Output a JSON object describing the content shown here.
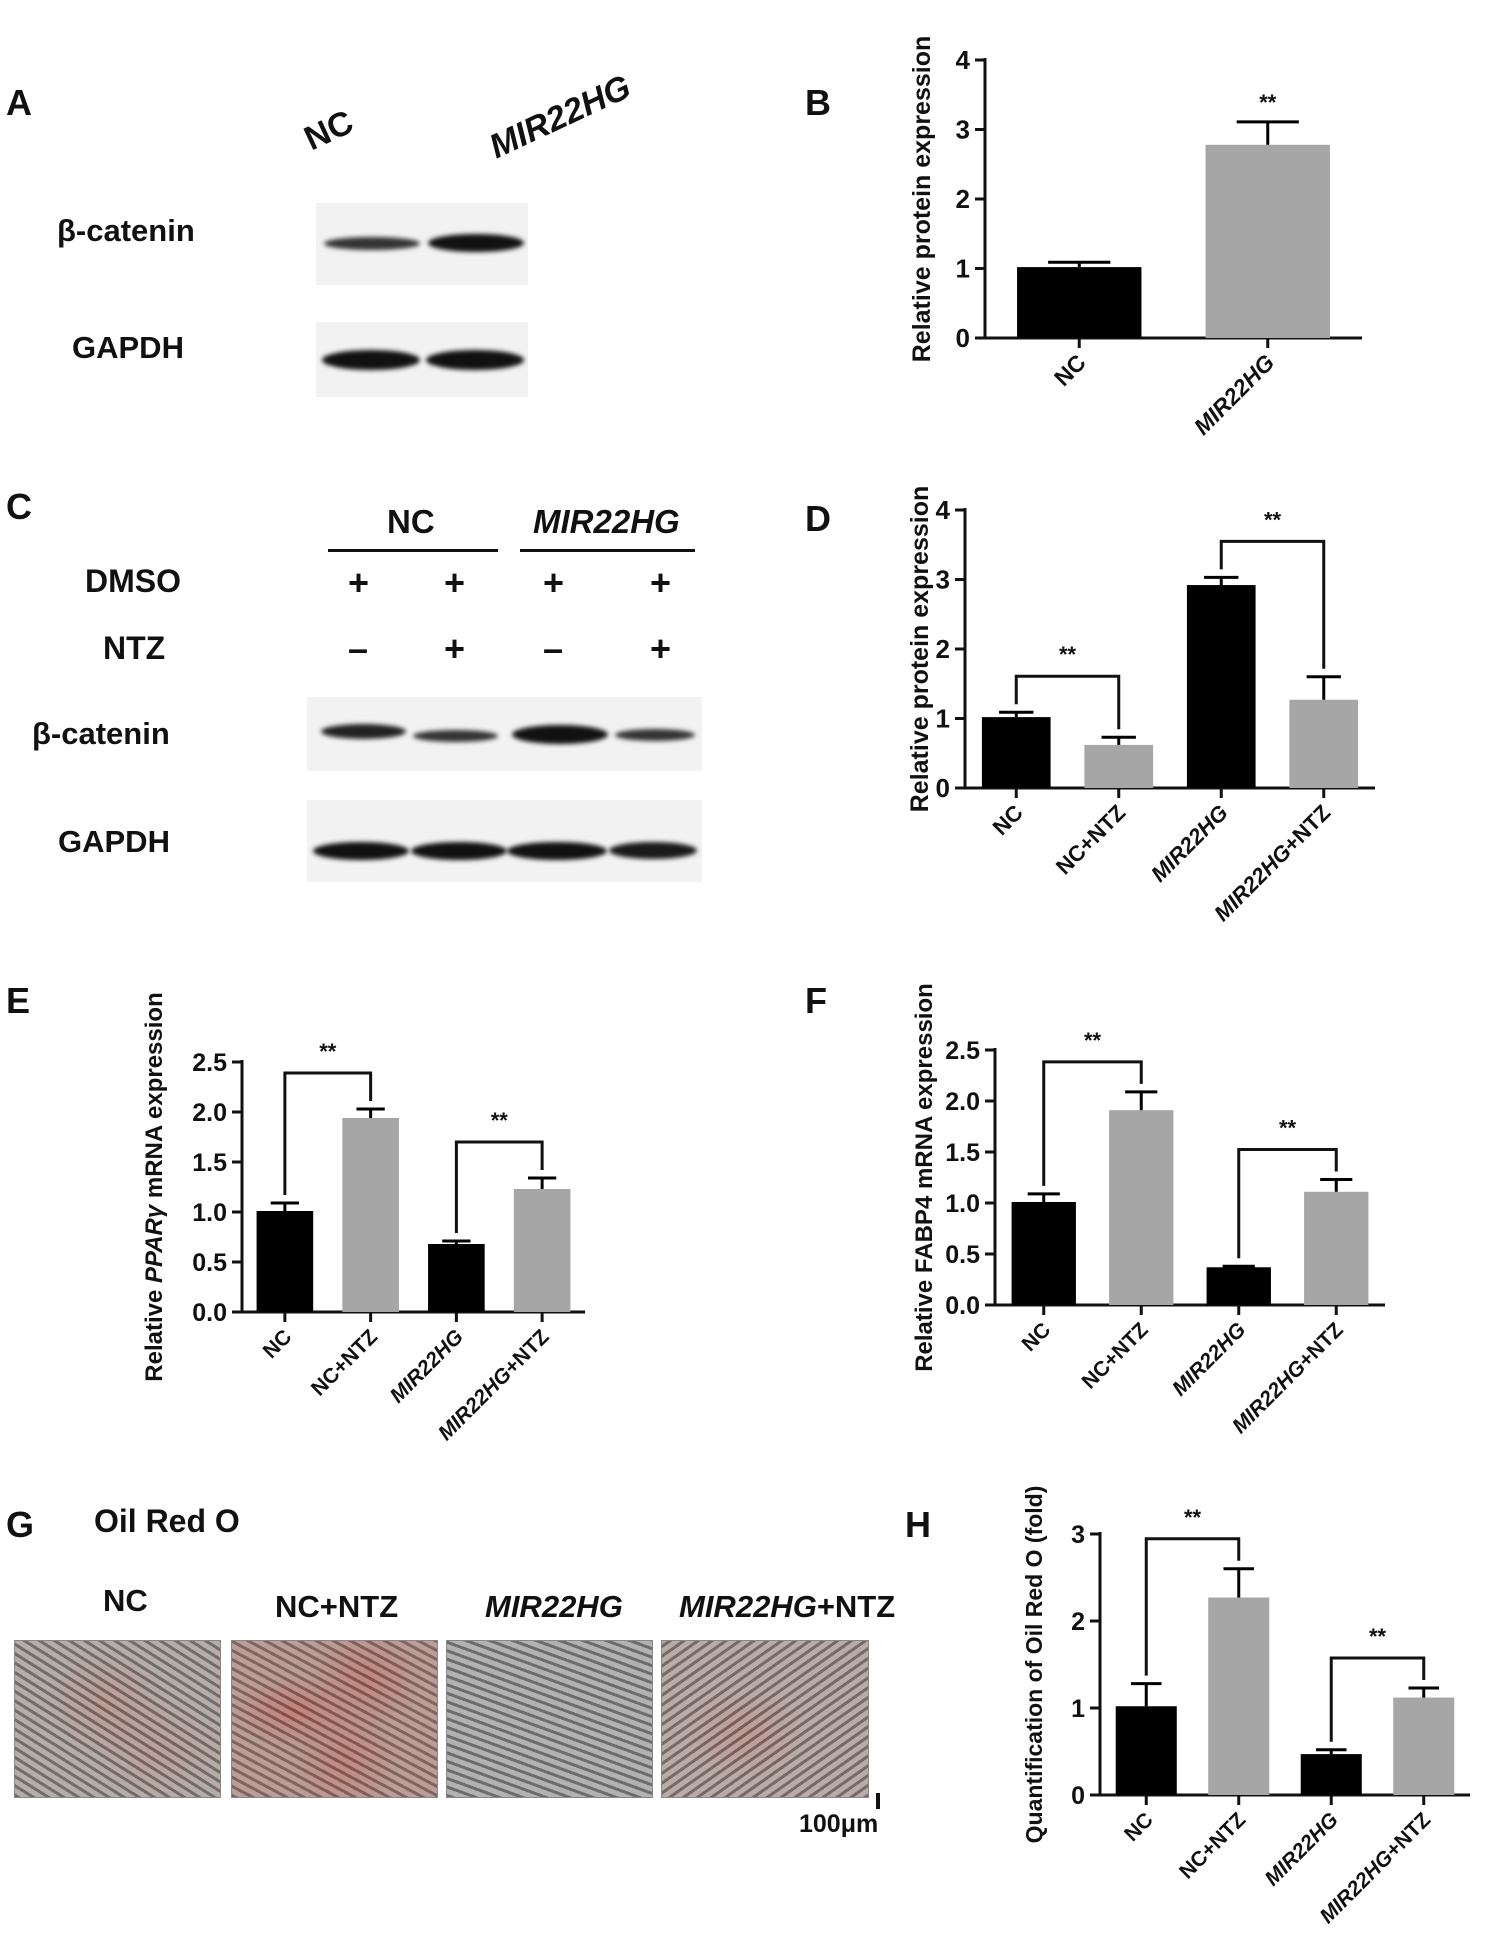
{
  "panels": {
    "A": "A",
    "B": "B",
    "C": "C",
    "D": "D",
    "E": "E",
    "F": "F",
    "G": "G",
    "H": "H"
  },
  "blotA": {
    "lane_labels": [
      "NC",
      "MIR22HG"
    ],
    "rows": [
      "β-catenin",
      "GAPDH"
    ],
    "band_intensity": {
      "beta_catenin": [
        0.55,
        1.0
      ],
      "GAPDH": [
        1.0,
        1.0
      ]
    }
  },
  "blotC": {
    "group_labels": [
      "NC",
      "MIR22HG"
    ],
    "treatments": [
      {
        "name": "DMSO",
        "signs": [
          "+",
          "+",
          "+",
          "+"
        ]
      },
      {
        "name": "NTZ",
        "signs": [
          "–",
          "+",
          "–",
          "+"
        ]
      }
    ],
    "rows": [
      "β-catenin",
      "GAPDH"
    ],
    "band_intensity": {
      "beta_catenin": [
        0.75,
        0.55,
        1.0,
        0.5
      ],
      "GAPDH": [
        1.0,
        1.0,
        1.0,
        0.95
      ]
    }
  },
  "oil_red": {
    "title": "Oil Red O",
    "labels": [
      {
        "italic": "",
        "normal": "NC"
      },
      {
        "italic": "",
        "normal": "NC+NTZ"
      },
      {
        "italic": "MIR22HG",
        "normal": ""
      },
      {
        "italic": "MIR22HG",
        "normal": "+NTZ"
      }
    ],
    "scale_bar": "100μm"
  },
  "colors": {
    "black_bar": "#000000",
    "gray_bar": "#a6a6a6"
  },
  "chart_data": [
    {
      "panel": "B",
      "type": "bar",
      "categories": [
        "NC",
        "MIR22HG"
      ],
      "values": [
        1.02,
        2.78
      ],
      "errors": [
        0.07,
        0.33
      ],
      "bar_colors": [
        "#000000",
        "#a6a6a6"
      ],
      "ylabel": "Relative protein expression",
      "ylim": [
        0,
        4
      ],
      "yticks": [
        "0",
        "1",
        "2",
        "3",
        "4"
      ],
      "significance": [
        {
          "label": "**",
          "bars": [
            1
          ]
        }
      ]
    },
    {
      "panel": "D",
      "type": "bar",
      "categories": [
        "NC",
        "NC+NTZ",
        "MIR22HG",
        "MIR22HG+NTZ"
      ],
      "values": [
        1.02,
        0.62,
        2.92,
        1.27
      ],
      "errors": [
        0.07,
        0.11,
        0.11,
        0.33
      ],
      "bar_colors": [
        "#000000",
        "#a6a6a6",
        "#000000",
        "#a6a6a6"
      ],
      "ylabel": "Relative protein expression",
      "ylim": [
        0,
        4
      ],
      "yticks": [
        "0",
        "1",
        "2",
        "3",
        "4"
      ],
      "significance": [
        {
          "label": "**",
          "bars": [
            0,
            1
          ]
        },
        {
          "label": "**",
          "bars": [
            2,
            3
          ]
        }
      ]
    },
    {
      "panel": "E",
      "type": "bar",
      "categories": [
        "NC",
        "NC+NTZ",
        "MIR22HG",
        "MIR22HG+NTZ"
      ],
      "values": [
        1.01,
        1.94,
        0.68,
        1.23
      ],
      "errors": [
        0.08,
        0.09,
        0.03,
        0.11
      ],
      "bar_colors": [
        "#000000",
        "#a6a6a6",
        "#000000",
        "#a6a6a6"
      ],
      "ylabel": "Relative PPARγ mRNA expression",
      "ylim": [
        0,
        2.5
      ],
      "yticks": [
        "0.0",
        "0.5",
        "1.0",
        "1.5",
        "2.0",
        "2.5"
      ],
      "significance": [
        {
          "label": "**",
          "bars": [
            0,
            1
          ]
        },
        {
          "label": "**",
          "bars": [
            2,
            3
          ]
        }
      ]
    },
    {
      "panel": "F",
      "type": "bar",
      "categories": [
        "NC",
        "NC+NTZ",
        "MIR22HG",
        "MIR22HG+NTZ"
      ],
      "values": [
        1.01,
        1.91,
        0.37,
        1.11
      ],
      "errors": [
        0.08,
        0.18,
        0.01,
        0.12
      ],
      "bar_colors": [
        "#000000",
        "#a6a6a6",
        "#000000",
        "#a6a6a6"
      ],
      "ylabel": "Relative FABP4 mRNA expression",
      "ylim": [
        0,
        2.5
      ],
      "yticks": [
        "0.0",
        "0.5",
        "1.0",
        "1.5",
        "2.0",
        "2.5"
      ],
      "significance": [
        {
          "label": "**",
          "bars": [
            0,
            1
          ]
        },
        {
          "label": "**",
          "bars": [
            2,
            3
          ]
        }
      ]
    },
    {
      "panel": "H",
      "type": "bar",
      "categories": [
        "NC",
        "NC+NTZ",
        "MIR22HG",
        "MIR22HG+NTZ"
      ],
      "values": [
        1.02,
        2.27,
        0.47,
        1.12
      ],
      "errors": [
        0.26,
        0.33,
        0.05,
        0.11
      ],
      "bar_colors": [
        "#000000",
        "#a6a6a6",
        "#000000",
        "#a6a6a6"
      ],
      "ylabel": "Quantification of Oil Red O (fold)",
      "ylim": [
        0,
        3
      ],
      "yticks": [
        "0",
        "1",
        "2",
        "3"
      ],
      "significance": [
        {
          "label": "**",
          "bars": [
            0,
            1
          ]
        },
        {
          "label": "**",
          "bars": [
            2,
            3
          ]
        }
      ]
    }
  ]
}
